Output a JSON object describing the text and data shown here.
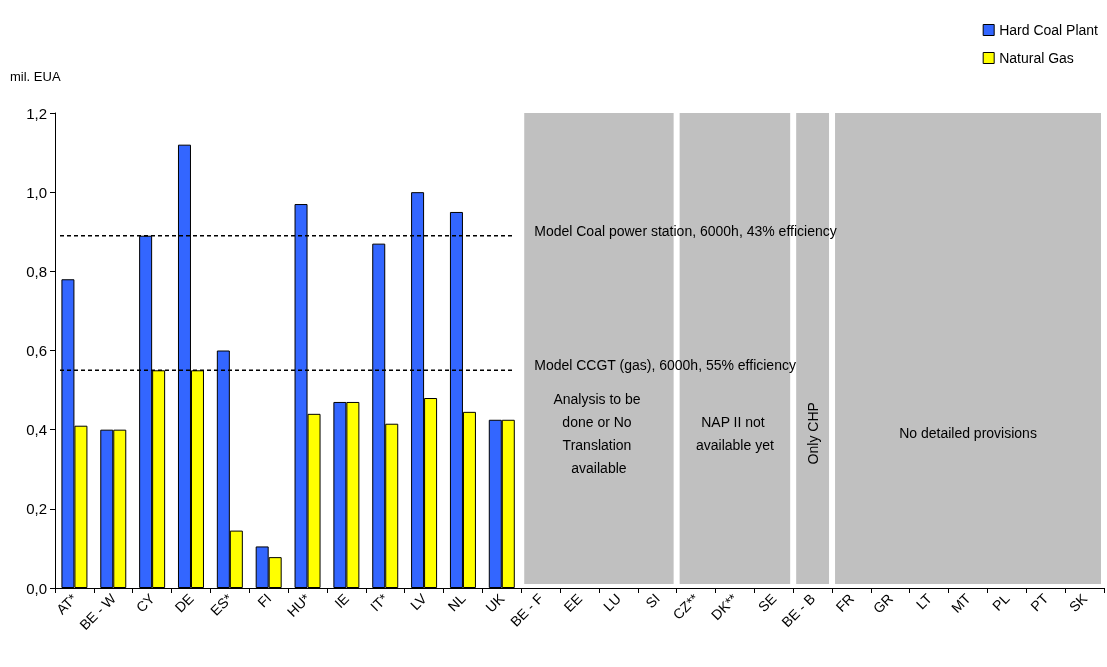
{
  "chart_data": {
    "type": "bar",
    "ylabel": "mil. EUA",
    "categories": [
      "AT*",
      "BE - W",
      "CY",
      "DE",
      "ES*",
      "FI",
      "HU*",
      "IE",
      "IT*",
      "LV",
      "NL",
      "UK",
      "BE - F",
      "EE",
      "LU",
      "SI",
      "CZ**",
      "DK**",
      "SE",
      "BE - B",
      "FR",
      "GR",
      "LT",
      "MT",
      "PL",
      "PT",
      "SK"
    ],
    "series": [
      {
        "name": "Hard Coal Plant",
        "color": "#3366ff",
        "values": [
          0.78,
          0.4,
          0.89,
          1.12,
          0.6,
          0.105,
          0.97,
          0.47,
          0.87,
          1.0,
          0.95,
          0.425,
          null,
          null,
          null,
          null,
          null,
          null,
          null,
          null,
          null,
          null,
          null,
          null,
          null,
          null,
          null
        ]
      },
      {
        "name": "Natural Gas",
        "color": "#ffff00",
        "values": [
          0.41,
          0.4,
          0.55,
          0.55,
          0.145,
          0.078,
          0.44,
          0.47,
          0.415,
          0.48,
          0.445,
          0.425,
          null,
          null,
          null,
          null,
          null,
          null,
          null,
          null,
          null,
          null,
          null,
          null,
          null,
          null,
          null
        ]
      }
    ],
    "ylim": [
      0,
      1.2
    ],
    "yticks": [
      {
        "value": 0,
        "label": "0,0"
      },
      {
        "value": 0.2,
        "label": "0,2"
      },
      {
        "value": 0.4,
        "label": "0,4"
      },
      {
        "value": 0.6,
        "label": "0,6"
      },
      {
        "value": 0.8,
        "label": "0,8"
      },
      {
        "value": 1.0,
        "label": "1,0"
      },
      {
        "value": 1.2,
        "label": "1,2"
      }
    ],
    "grid": false,
    "legend": "top right",
    "ref_lines": [
      {
        "axis": "y",
        "value": 0.89,
        "label": "Model Coal power station, 6000h, 43% efficiency",
        "line_style": "dashed",
        "color": "#000000"
      },
      {
        "axis": "y",
        "value": 0.55,
        "label": "Model CCGT (gas), 6000h, 55% efficiency",
        "line_style": "dashed",
        "color": "#000000"
      }
    ],
    "bands": [
      {
        "axis": "x",
        "from": "BE - F",
        "to": "SI",
        "label": "Analysis to be done or No Translation available",
        "color": "#c0c0c0"
      },
      {
        "axis": "x",
        "from": "CZ**",
        "to": "SE",
        "label": "NAP II not available yet",
        "color": "#c0c0c0"
      },
      {
        "axis": "x",
        "from": "BE - B",
        "to": "BE - B",
        "label": "Only CHP",
        "color": "#c0c0c0"
      },
      {
        "axis": "x",
        "from": "FR",
        "to": "SK",
        "label": "No detailed provisions",
        "color": "#c0c0c0"
      }
    ]
  }
}
